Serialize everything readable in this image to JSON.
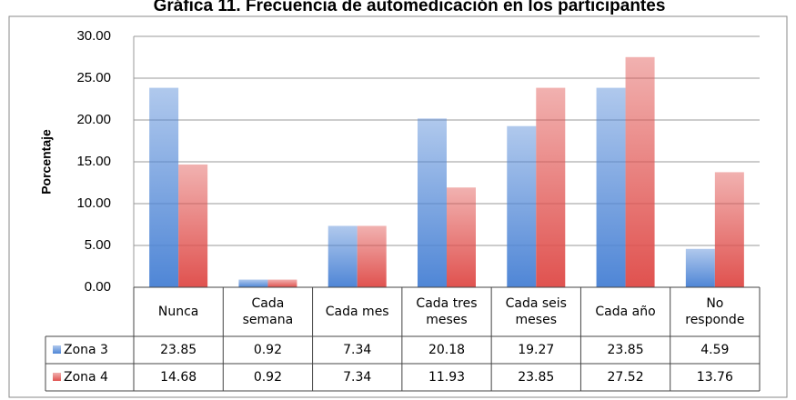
{
  "chart_data": {
    "type": "bar",
    "title": "Gráfica 11. Frecuencia de automedicación en los participantes",
    "y_label": "Porcentaje",
    "categories": [
      "Nunca",
      "Cada\nsemana",
      "Cada mes",
      "Cada tres\nmeses",
      "Cada seis\nmeses",
      "Cada año",
      "No\nresponde"
    ],
    "series": [
      {
        "name": "Zona 3",
        "color": "#4f86d6",
        "values": [
          23.85,
          0.92,
          7.34,
          20.18,
          19.27,
          23.85,
          4.59
        ]
      },
      {
        "name": "Zona 4",
        "color": "#e0524f",
        "values": [
          14.68,
          0.92,
          7.34,
          11.93,
          23.85,
          27.52,
          13.76
        ]
      }
    ],
    "ylim": [
      0,
      30
    ],
    "yticks": [
      {
        "value": 0,
        "label": "0.00"
      },
      {
        "value": 5,
        "label": "5.00"
      },
      {
        "value": 10,
        "label": "10.00"
      },
      {
        "value": 15,
        "label": "15.00"
      },
      {
        "value": 20,
        "label": "20.00"
      },
      {
        "value": 25,
        "label": "25.00"
      },
      {
        "value": 30,
        "label": "30.00"
      }
    ],
    "grid": true
  }
}
